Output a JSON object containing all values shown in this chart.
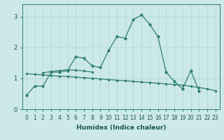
{
  "xlabel": "Humidex (Indice chaleur)",
  "ylabel": "",
  "bg_color": "#cce8e8",
  "line_color": "#2e7d72",
  "grid_color": "#b0d8d8",
  "xlim": [
    -0.5,
    23.5
  ],
  "ylim": [
    0,
    3.4
  ],
  "xticks": [
    0,
    1,
    2,
    3,
    4,
    5,
    6,
    7,
    8,
    9,
    10,
    11,
    12,
    13,
    14,
    15,
    16,
    17,
    18,
    19,
    20,
    21,
    22,
    23
  ],
  "yticks": [
    0,
    1,
    2,
    3
  ],
  "curve1_x": [
    0,
    1,
    2,
    3,
    4,
    5,
    6,
    7,
    8,
    9,
    10,
    11,
    12,
    13,
    14,
    15,
    16,
    17,
    18,
    19,
    20,
    21
  ],
  "curve1_y": [
    0.45,
    0.75,
    0.75,
    1.2,
    1.2,
    1.25,
    1.7,
    1.65,
    1.4,
    1.35,
    1.9,
    2.35,
    2.3,
    2.9,
    3.05,
    2.75,
    2.35,
    1.2,
    0.9,
    0.65,
    1.25,
    0.6
  ],
  "curve2_x": [
    0,
    1,
    2,
    3,
    4,
    5,
    6,
    7,
    8,
    9,
    10,
    11,
    12,
    13,
    14,
    15,
    16,
    17,
    18,
    19,
    20,
    21,
    22,
    23
  ],
  "curve2_y": [
    1.15,
    1.13,
    1.11,
    1.09,
    1.07,
    1.06,
    1.04,
    1.02,
    1.0,
    0.98,
    0.96,
    0.94,
    0.92,
    0.9,
    0.88,
    0.86,
    0.84,
    0.82,
    0.8,
    0.78,
    0.74,
    0.7,
    0.66,
    0.6
  ],
  "curve3_x": [
    2,
    3,
    4,
    5,
    6,
    7,
    8
  ],
  "curve3_y": [
    1.18,
    1.22,
    1.25,
    1.28,
    1.26,
    1.24,
    1.2
  ]
}
